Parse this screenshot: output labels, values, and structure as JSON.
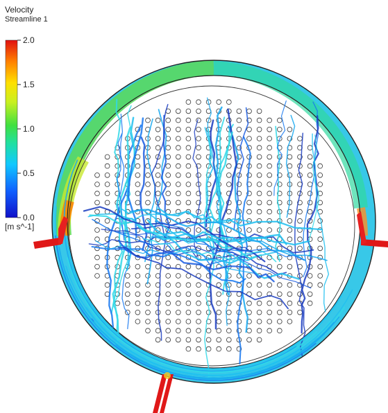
{
  "legend": {
    "title": "Velocity",
    "subtitle": "Streamline 1",
    "unit": "[m s^-1]",
    "ticks": [
      "2.0",
      "1.5",
      "1.0",
      "0.5",
      "0.0"
    ],
    "tick_values": [
      2.0,
      1.5,
      1.0,
      0.5,
      0.0
    ],
    "range": [
      0.0,
      2.0
    ],
    "colormap": [
      "#1010c8",
      "#1060ff",
      "#10c8ff",
      "#20e0a0",
      "#40e040",
      "#c8f020",
      "#ffe000",
      "#ff8000",
      "#e01010"
    ]
  },
  "colors": {
    "background": "#ffffff",
    "vessel_outline": "#222222",
    "tube_outline": "#333333",
    "nozzle": "#e01818",
    "wall_jet_fast": "#30d050",
    "streamline_slow": "#1a3cc0",
    "streamline_mid": "#18a8f0"
  }
}
